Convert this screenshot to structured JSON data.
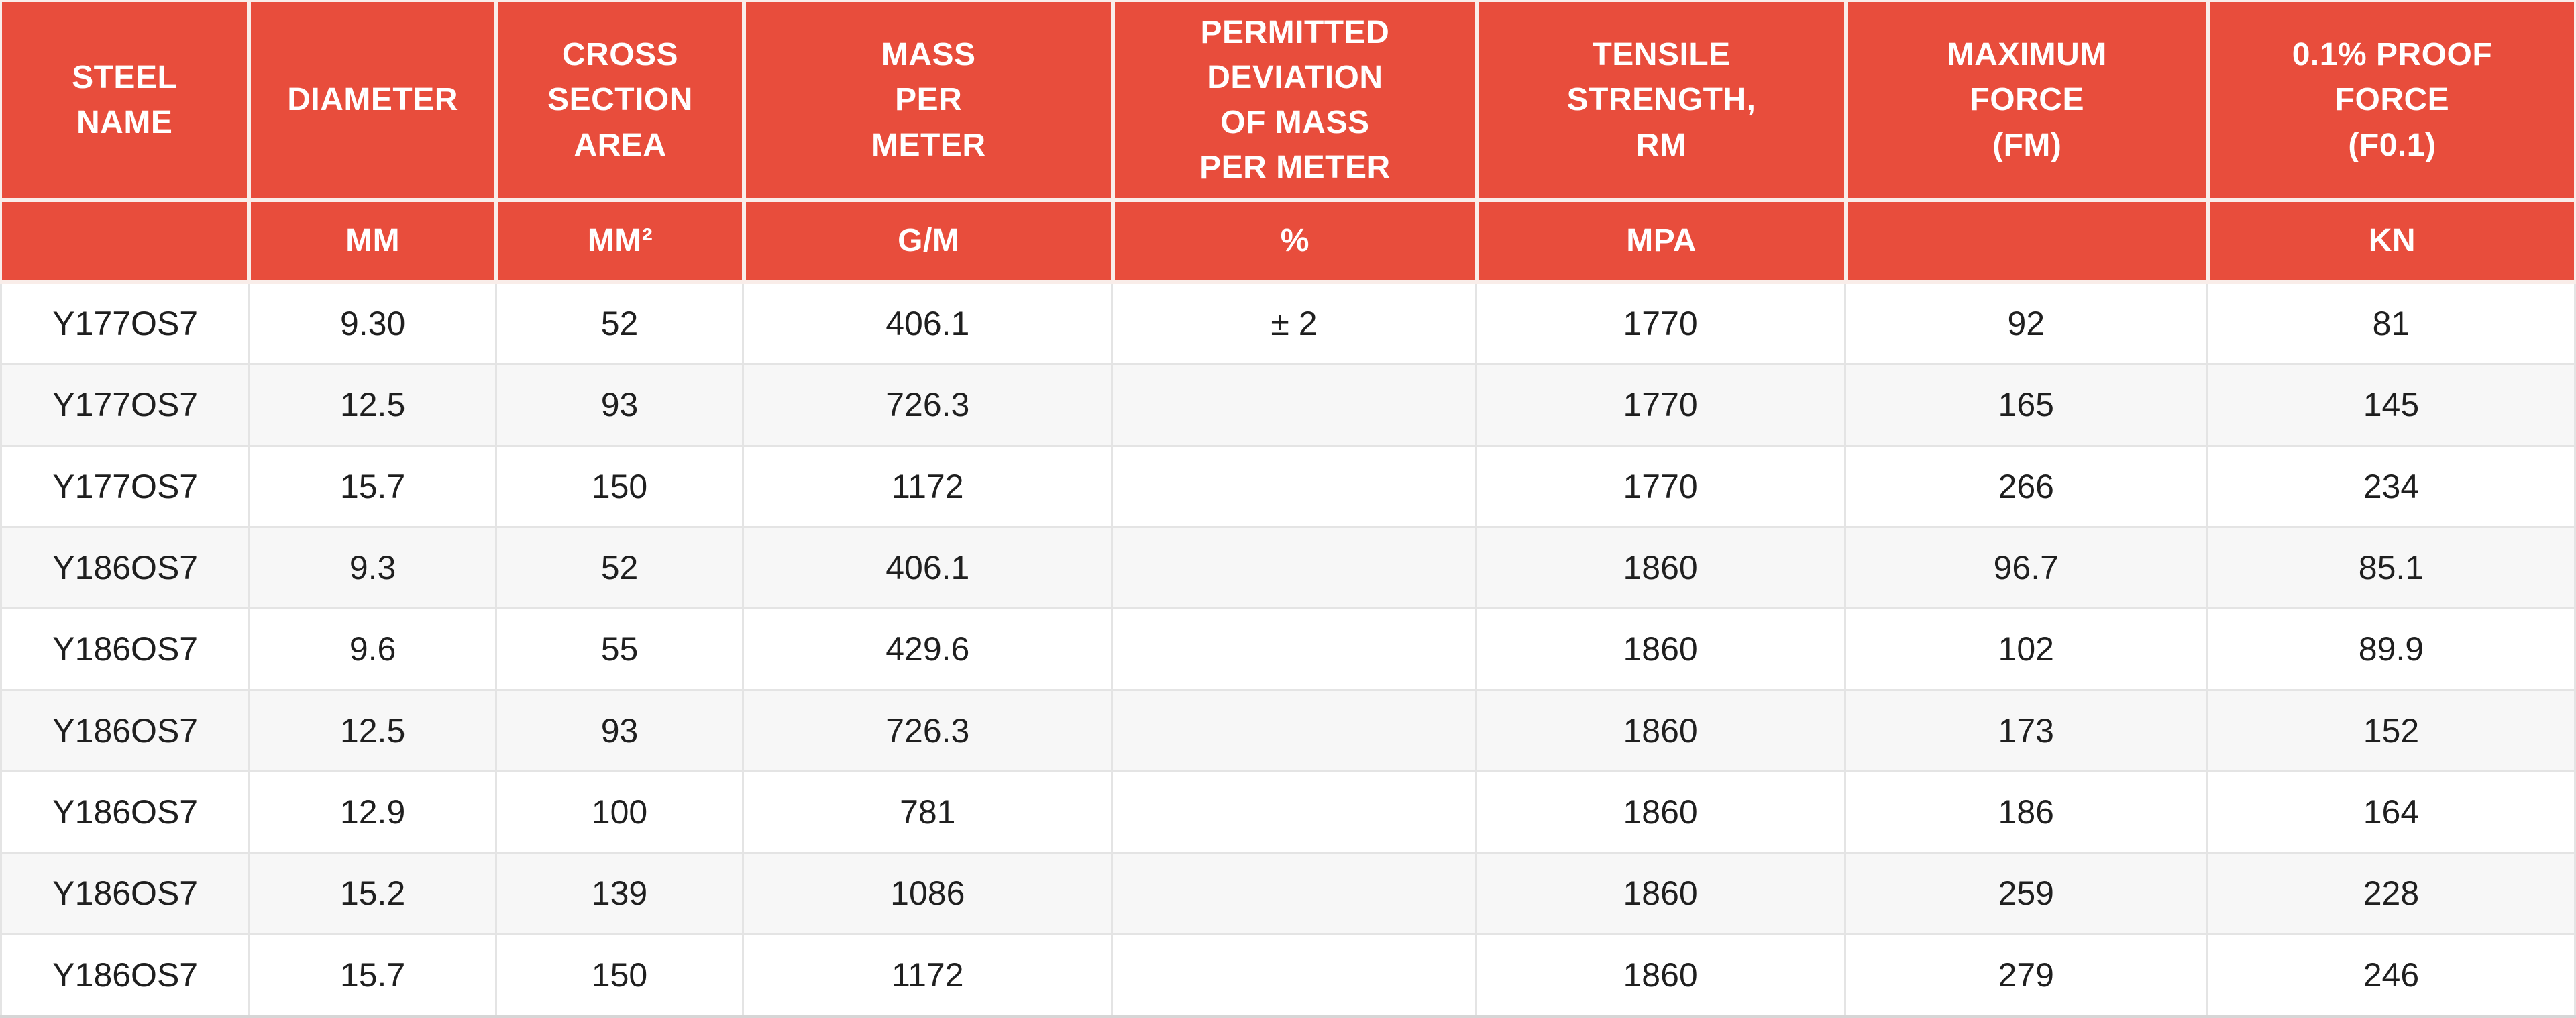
{
  "chart_data": {
    "type": "table",
    "columns": [
      {
        "label": "STEEL\nNAME",
        "unit": ""
      },
      {
        "label": "DIAMETER",
        "unit": "MM"
      },
      {
        "label": "CROSS\nSECTION\nAREA",
        "unit": "MM²"
      },
      {
        "label": "MASS\nPER\nMETER",
        "unit": "G/M"
      },
      {
        "label": "PERMITTED\nDEVIATION\nOF MASS\nPER METER",
        "unit": "%"
      },
      {
        "label": "TENSILE\nSTRENGTH,\nRM",
        "unit": "MPA"
      },
      {
        "label": "MAXIMUM\nFORCE\n(FM)",
        "unit": ""
      },
      {
        "label": "0.1% PROOF\nFORCE\n(F0.1)",
        "unit": "KN"
      }
    ],
    "rows": [
      [
        "Y177OS7",
        "9.30",
        "52",
        "406.1",
        "± 2",
        "1770",
        "92",
        "81"
      ],
      [
        "Y177OS7",
        "12.5",
        "93",
        "726.3",
        "",
        "1770",
        "165",
        "145"
      ],
      [
        "Y177OS7",
        "15.7",
        "150",
        "1172",
        "",
        "1770",
        "266",
        "234"
      ],
      [
        "Y186OS7",
        "9.3",
        "52",
        "406.1",
        "",
        "1860",
        "96.7",
        "85.1"
      ],
      [
        "Y186OS7",
        "9.6",
        "55",
        "429.6",
        "",
        "1860",
        "102",
        "89.9"
      ],
      [
        "Y186OS7",
        "12.5",
        "93",
        "726.3",
        "",
        "1860",
        "173",
        "152"
      ],
      [
        "Y186OS7",
        "12.9",
        "100",
        "781",
        "",
        "1860",
        "186",
        "164"
      ],
      [
        "Y186OS7",
        "15.2",
        "139",
        "1086",
        "",
        "1860",
        "259",
        "228"
      ],
      [
        "Y186OS7",
        "15.7",
        "150",
        "1172",
        "",
        "1860",
        "279",
        "246"
      ]
    ]
  },
  "colors": {
    "header_bg": "#E84D3C",
    "header_text": "#FFFFFF",
    "header_divider": "#F9EDE9",
    "grid_line": "#E4E4E4",
    "row_bg": "#FFFFFF",
    "row_alt_bg": "#F7F7F7",
    "data_text": "#1F1F1F",
    "bottom_border": "#D6D6D6"
  }
}
